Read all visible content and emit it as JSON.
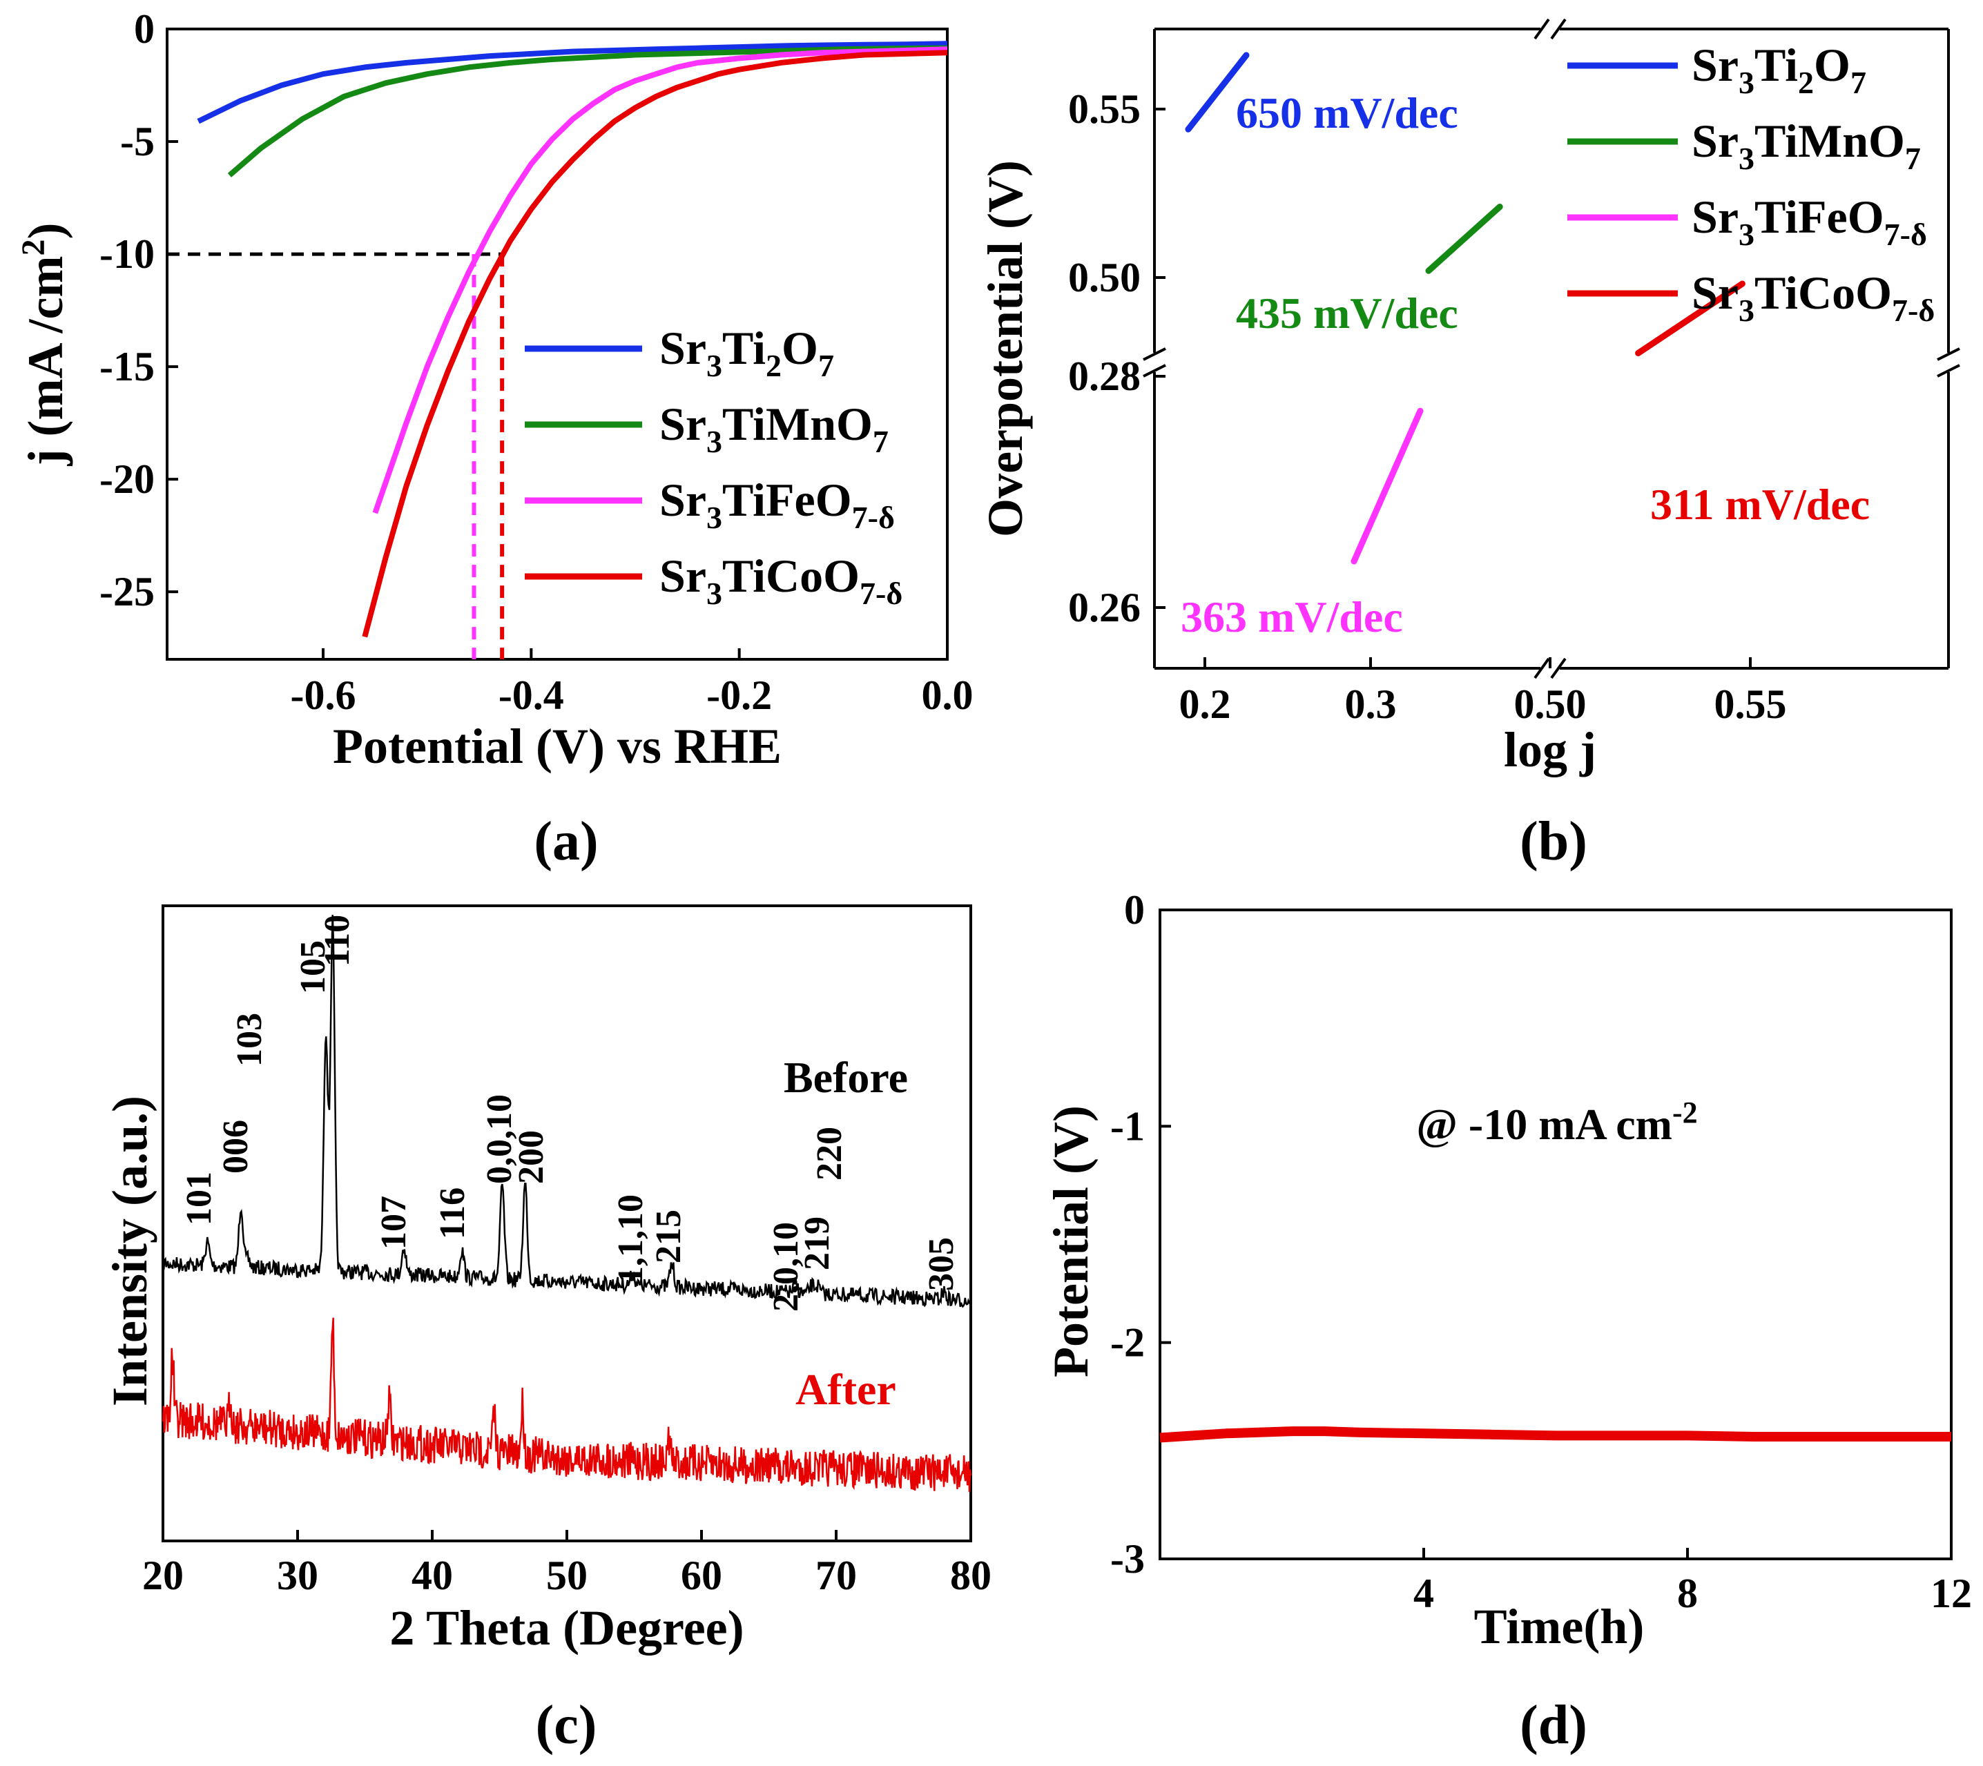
{
  "figure": {
    "panels": [
      "(a)",
      "(b)",
      "(c)",
      "(d)"
    ]
  },
  "chart_data": [
    {
      "id": "a",
      "type": "line",
      "panel_label": "(a)",
      "xlabel": "Potential (V) vs RHE",
      "ylabel": "j (mA /cm2)",
      "ylabel_main": "j (mA /cm",
      "ylabel_sup": "2",
      "ylabel_tail": ")",
      "xlim": [
        -0.75,
        0.0
      ],
      "ylim": [
        -28,
        0
      ],
      "xticks": [
        -0.6,
        -0.4,
        -0.2,
        0.0
      ],
      "xtick_labels": [
        "-0.6",
        "-0.4",
        "-0.2",
        "0.0"
      ],
      "yticks": [
        0,
        -5,
        -10,
        -15,
        -20,
        -25
      ],
      "ytick_labels": [
        "0",
        "-5",
        "-10",
        "-15",
        "-20",
        "-25"
      ],
      "reference_line": {
        "y": -10,
        "x_marks": [
          -0.455,
          -0.428
        ],
        "colors": [
          "#ff33ff",
          "#e60000"
        ]
      },
      "series": [
        {
          "name": "Sr3Ti2O7",
          "legend": [
            "Sr",
            "3",
            "Ti",
            "2",
            "O",
            "7"
          ],
          "color": "#1530e6",
          "x": [
            -0.72,
            -0.68,
            -0.64,
            -0.6,
            -0.56,
            -0.52,
            -0.48,
            -0.44,
            -0.4,
            -0.36,
            -0.32,
            -0.28,
            -0.24,
            -0.2,
            -0.16,
            -0.12,
            -0.08,
            -0.04,
            0.0
          ],
          "y": [
            -4.1,
            -3.2,
            -2.5,
            -2.0,
            -1.7,
            -1.5,
            -1.35,
            -1.2,
            -1.1,
            -1.0,
            -0.95,
            -0.9,
            -0.85,
            -0.8,
            -0.75,
            -0.72,
            -0.7,
            -0.68,
            -0.65
          ]
        },
        {
          "name": "Sr3TiMnO7",
          "legend": [
            "Sr",
            "3",
            "TiMnO",
            "7"
          ],
          "color": "#148a14",
          "x": [
            -0.69,
            -0.66,
            -0.62,
            -0.58,
            -0.54,
            -0.5,
            -0.46,
            -0.42,
            -0.38,
            -0.34,
            -0.3,
            -0.26,
            -0.22,
            -0.18,
            -0.14,
            -0.1,
            -0.06,
            -0.02,
            0.0
          ],
          "y": [
            -6.5,
            -5.3,
            -4.0,
            -3.0,
            -2.4,
            -2.0,
            -1.7,
            -1.5,
            -1.35,
            -1.25,
            -1.15,
            -1.1,
            -1.05,
            -1.0,
            -0.95,
            -0.9,
            -0.87,
            -0.85,
            -0.85
          ]
        },
        {
          "name": "Sr3TiFeO7-δ",
          "legend": [
            "Sr",
            "3",
            "TiFeO",
            "7-δ"
          ],
          "color": "#ff33ff",
          "x": [
            -0.55,
            -0.52,
            -0.5,
            -0.48,
            -0.46,
            -0.44,
            -0.42,
            -0.4,
            -0.38,
            -0.36,
            -0.34,
            -0.32,
            -0.3,
            -0.28,
            -0.26,
            -0.24,
            -0.2,
            -0.16,
            -0.12,
            -0.08,
            -0.04,
            0.0
          ],
          "y": [
            -21.5,
            -17.5,
            -15.0,
            -12.8,
            -10.8,
            -9.0,
            -7.4,
            -6.0,
            -4.9,
            -4.0,
            -3.3,
            -2.7,
            -2.3,
            -2.0,
            -1.7,
            -1.5,
            -1.3,
            -1.15,
            -1.05,
            -1.0,
            -0.95,
            -0.9
          ]
        },
        {
          "name": "Sr3TiCoO7-δ",
          "legend": [
            "Sr",
            "3",
            "TiCoO",
            "7-δ"
          ],
          "color": "#e60000",
          "x": [
            -0.56,
            -0.54,
            -0.52,
            -0.5,
            -0.48,
            -0.46,
            -0.44,
            -0.42,
            -0.4,
            -0.38,
            -0.36,
            -0.34,
            -0.32,
            -0.3,
            -0.28,
            -0.26,
            -0.24,
            -0.22,
            -0.2,
            -0.16,
            -0.12,
            -0.08,
            -0.04,
            0.0
          ],
          "y": [
            -27.0,
            -23.5,
            -20.3,
            -17.6,
            -15.2,
            -13.0,
            -11.1,
            -9.4,
            -8.0,
            -6.8,
            -5.8,
            -4.9,
            -4.1,
            -3.5,
            -3.0,
            -2.6,
            -2.3,
            -2.0,
            -1.8,
            -1.5,
            -1.3,
            -1.15,
            -1.1,
            -1.05
          ]
        }
      ]
    },
    {
      "id": "b",
      "type": "line",
      "panel_label": "(b)",
      "xlabel": "log j",
      "ylabel": "Overpotential (V)",
      "note": "Broken axes on both x and y",
      "xticks_left": [
        0.2,
        0.3
      ],
      "xticks_right": [
        0.5,
        0.55
      ],
      "xtick_labels": [
        "0.2",
        "0.3",
        "0.50",
        "0.55"
      ],
      "yticks_low": [
        0.26,
        0.28
      ],
      "yticks_high": [
        0.5,
        0.55
      ],
      "ytick_labels": [
        "0.26",
        "0.28",
        "0.50",
        "0.55"
      ],
      "series": [
        {
          "name": "Sr3Ti2O7",
          "legend": [
            "Sr",
            "3",
            "Ti",
            "2",
            "O",
            "7"
          ],
          "color": "#1530e6",
          "tafel": "650 mV/dec",
          "x": [
            0.19,
            0.225
          ],
          "y": [
            0.544,
            0.566
          ]
        },
        {
          "name": "Sr3TiMnO7",
          "legend": [
            "Sr",
            "3",
            "TiMnO",
            "7"
          ],
          "color": "#148a14",
          "tafel": "435 mV/dec",
          "x": [
            0.335,
            0.378
          ],
          "y": [
            0.502,
            0.521
          ]
        },
        {
          "name": "Sr3TiFeO7-δ",
          "legend": [
            "Sr",
            "3",
            "TiFeO",
            "7-δ"
          ],
          "color": "#ff33ff",
          "tafel": "363 mV/dec",
          "x": [
            0.29,
            0.33
          ],
          "y": [
            0.264,
            0.277
          ]
        },
        {
          "name": "Sr3TiCoO7-δ",
          "legend": [
            "Sr",
            "3",
            "TiCoO",
            "7-δ"
          ],
          "color": "#e60000",
          "tafel": "311 mV/dec",
          "x": [
            0.522,
            0.548
          ],
          "y": [
            0.282,
            0.288
          ]
        }
      ]
    },
    {
      "id": "c",
      "type": "line",
      "panel_label": "(c)",
      "xlabel": "2 Theta (Degree)",
      "ylabel": "Intensity (a.u.)",
      "xlim": [
        20,
        80
      ],
      "xticks": [
        20,
        30,
        40,
        50,
        60,
        70,
        80
      ],
      "xtick_labels": [
        "20",
        "30",
        "40",
        "50",
        "60",
        "70",
        "80"
      ],
      "series_labels": {
        "before": "Before",
        "after": "After"
      },
      "colors": {
        "before": "#000000",
        "after": "#e60000"
      },
      "peaks": [
        {
          "hkl": "101",
          "x": 23.3,
          "h": 0.06
        },
        {
          "hkl": "006",
          "x": 25.8,
          "h": 0.16
        },
        {
          "hkl": "103",
          "x": 26.3,
          "h": 0.02
        },
        {
          "hkl": "105",
          "x": 32.1,
          "h": 0.62
        },
        {
          "hkl": "110",
          "x": 32.6,
          "h": 0.9
        },
        {
          "hkl": "107",
          "x": 37.9,
          "h": 0.07
        },
        {
          "hkl": "116",
          "x": 42.2,
          "h": 0.07
        },
        {
          "hkl": "0,0,10",
          "x": 45.2,
          "h": 0.24
        },
        {
          "hkl": "200",
          "x": 46.9,
          "h": 0.25
        },
        {
          "hkl": "1,1,10",
          "x": 54.9,
          "h": 0.03
        },
        {
          "hkl": "215",
          "x": 57.8,
          "h": 0.06
        },
        {
          "hkl": "2,0,10",
          "x": 67.0,
          "h": 0.02
        },
        {
          "hkl": "219",
          "x": 68.2,
          "h": 0.02
        },
        {
          "hkl": "220",
          "x": 68.6,
          "h": 0.02
        },
        {
          "hkl": "305",
          "x": 78.0,
          "h": 0.02
        }
      ],
      "after_peaks": [
        {
          "x": 20.7,
          "h": 0.3
        },
        {
          "x": 25.0,
          "h": 0.12
        },
        {
          "x": 32.6,
          "h": 0.55
        },
        {
          "x": 36.8,
          "h": 0.2
        },
        {
          "x": 44.6,
          "h": 0.18
        },
        {
          "x": 46.7,
          "h": 0.24
        },
        {
          "x": 57.6,
          "h": 0.12
        }
      ]
    },
    {
      "id": "d",
      "type": "line",
      "panel_label": "(d)",
      "xlabel": "Time(h)",
      "ylabel": "Potential (V)",
      "xlim": [
        0,
        12
      ],
      "ylim": [
        -3,
        0
      ],
      "xticks": [
        4,
        8,
        12
      ],
      "xtick_labels": [
        "4",
        "8",
        "12"
      ],
      "yticks": [
        0,
        -1,
        -2,
        -3
      ],
      "ytick_labels": [
        "0",
        "-1",
        "-2",
        "-3"
      ],
      "annotation_main": "@ -10 mA cm",
      "annotation_sup": "-2",
      "annotation": "@ -10 mA cm-2",
      "series": [
        {
          "name": "Sr3TiCoO7-δ",
          "color": "#e60000",
          "x": [
            0,
            0.5,
            1,
            1.5,
            2,
            2.5,
            3,
            4,
            5,
            6,
            7,
            8,
            9,
            10,
            11,
            12
          ],
          "y": [
            -2.44,
            -2.43,
            -2.42,
            -2.415,
            -2.41,
            -2.41,
            -2.415,
            -2.42,
            -2.425,
            -2.43,
            -2.43,
            -2.43,
            -2.435,
            -2.435,
            -2.435,
            -2.435
          ]
        }
      ]
    }
  ]
}
